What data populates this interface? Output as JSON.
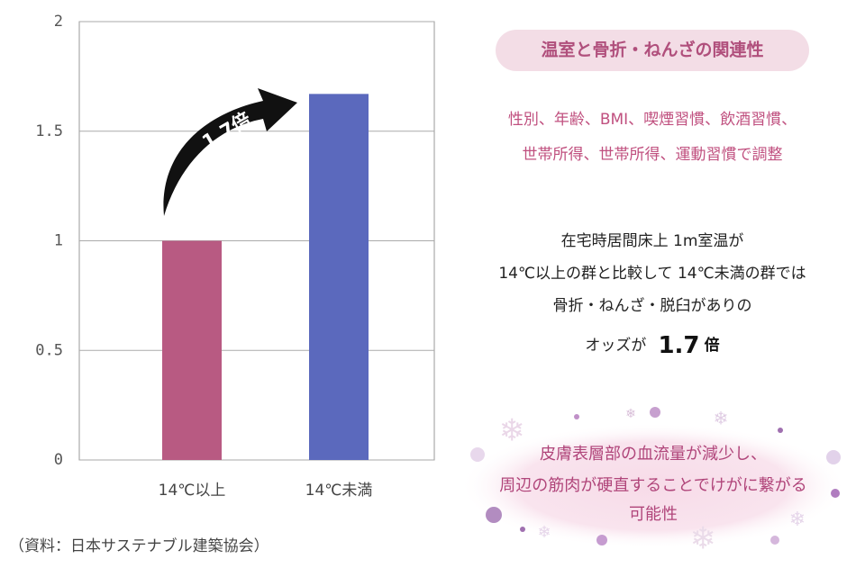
{
  "chart_data": {
    "type": "bar",
    "categories": [
      "14℃以上",
      "14℃未満"
    ],
    "values": [
      1,
      1.67
    ],
    "colors": [
      "#b85a82",
      "#5b69bd"
    ],
    "ylim": [
      0,
      2
    ],
    "yticks": [
      0,
      0.5,
      1,
      1.5,
      2
    ],
    "grid": true,
    "annotation": "1.7倍"
  },
  "panel": {
    "heading": "温室と骨折・ねんざの関連性",
    "adjust_lines": [
      "性別、年齢、BMI、喫煙習慣、飲酒習慣、",
      "世帯所得、世帯所得、運動習慣で調整"
    ],
    "result_lines": [
      "在宅時居間床上 1m室温が",
      "14℃以上の群と比較して 14℃未満の群では",
      "骨折・ねんざ・脱臼がありの"
    ],
    "odds_prefix": "オッズが",
    "odds_value": "1.7",
    "odds_unit": "倍"
  },
  "note": {
    "lines": [
      "皮膚表層部の血流量が減少し、",
      "周辺の筋肉が硬直することでけがに繋がる",
      "可能性"
    ]
  },
  "source": "（資料：日本サステナブル建築協会）"
}
